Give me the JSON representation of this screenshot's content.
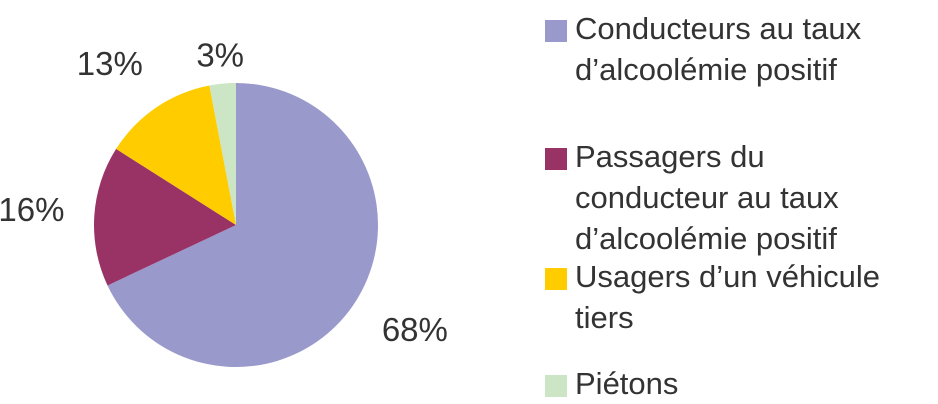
{
  "colors": {
    "conducteurs": "#9999cc",
    "passagers": "#993366",
    "usagers": "#ffcc00",
    "pietons": "#cce5c5"
  },
  "chart_data": {
    "type": "pie",
    "title": "",
    "unit": "%",
    "slices": [
      {
        "label": "Conducteurs au taux\nd’alcoolémie positif",
        "value": 68,
        "value_label": "68%",
        "color": "#9999cc"
      },
      {
        "label": "Passagers du\nconducteur au taux\nd’alcoolémie positif",
        "value": 16,
        "value_label": "16%",
        "color": "#993366"
      },
      {
        "label": "Usagers d’un  véhicule\ntiers",
        "value": 13,
        "value_label": "13%",
        "color": "#ffcc00"
      },
      {
        "label": "Piétons",
        "value": 3,
        "value_label": "3%",
        "color": "#cce5c5"
      }
    ],
    "start_angle": "12 o'clock",
    "direction": "clockwise",
    "legend_position": "right"
  }
}
